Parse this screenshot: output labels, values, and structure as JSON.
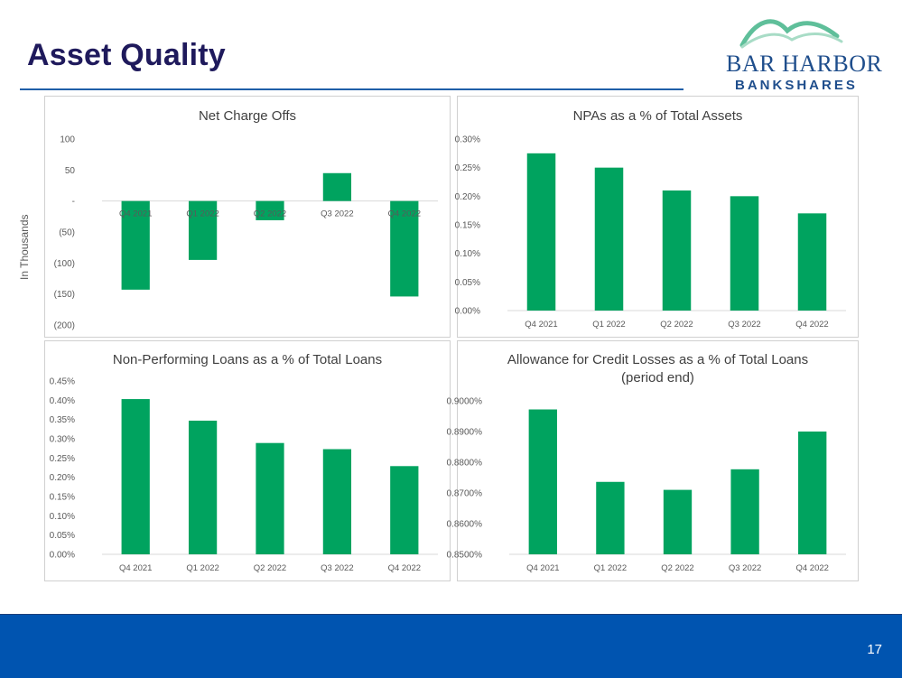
{
  "slide": {
    "title": "Asset Quality",
    "page_number": "17",
    "logo": {
      "line1": "BAR HARBOR",
      "line2": "BANKSHARES",
      "wave_color": "#5fbf9a"
    },
    "outer_ylabel": "In Thousands"
  },
  "colors": {
    "bar": "#00a35f",
    "axis": "#d9d9d9",
    "text": "#595959",
    "title_text": "#404040"
  },
  "chart_data": [
    {
      "type": "bar",
      "title": "Net Charge Offs",
      "categories": [
        "Q4 2021",
        "Q1 2022",
        "Q2 2022",
        "Q3 2022",
        "Q4 2022"
      ],
      "values": [
        -143,
        -95,
        -31,
        45,
        -154
      ],
      "ylim": [
        -200,
        100
      ],
      "yticks": [
        100,
        50,
        0,
        -50,
        -100,
        -150,
        -200
      ],
      "ytick_labels": [
        "100",
        "50",
        "-",
        "(50)",
        "(100)",
        "(150)",
        "(200)"
      ],
      "ylabel": "In Thousands",
      "xlabel": ""
    },
    {
      "type": "bar",
      "title": "NPAs as a % of Total Assets",
      "categories": [
        "Q4 2021",
        "Q1 2022",
        "Q2 2022",
        "Q3 2022",
        "Q4 2022"
      ],
      "values": [
        0.275,
        0.25,
        0.21,
        0.2,
        0.17
      ],
      "ylim": [
        0,
        0.3
      ],
      "yticks": [
        0.3,
        0.25,
        0.2,
        0.15,
        0.1,
        0.05,
        0
      ],
      "ytick_labels": [
        "0.30%",
        "0.25%",
        "0.20%",
        "0.15%",
        "0.10%",
        "0.05%",
        "0.00%"
      ],
      "ylabel": "",
      "xlabel": ""
    },
    {
      "type": "bar",
      "title": "Non-Performing Loans as a % of Total Loans",
      "categories": [
        "Q4 2021",
        "Q1 2022",
        "Q2 2022",
        "Q3 2022",
        "Q4 2022"
      ],
      "values": [
        0.403,
        0.347,
        0.289,
        0.273,
        0.229
      ],
      "ylim": [
        0,
        0.45
      ],
      "yticks": [
        0.45,
        0.4,
        0.35,
        0.3,
        0.25,
        0.2,
        0.15,
        0.1,
        0.05,
        0
      ],
      "ytick_labels": [
        "0.45%",
        "0.40%",
        "0.35%",
        "0.30%",
        "0.25%",
        "0.20%",
        "0.15%",
        "0.10%",
        "0.05%",
        "0.00%"
      ],
      "ylabel": "",
      "xlabel": ""
    },
    {
      "type": "bar",
      "title": "Allowance for Credit Losses as a % of Total Loans",
      "subtitle": "(period end)",
      "categories": [
        "Q4 2021",
        "Q1 2022",
        "Q2 2022",
        "Q3 2022",
        "Q4 2022"
      ],
      "values": [
        0.8972,
        0.8736,
        0.871,
        0.8777,
        0.89
      ],
      "ylim": [
        0.85,
        0.9
      ],
      "yticks": [
        0.9,
        0.89,
        0.88,
        0.87,
        0.86,
        0.85
      ],
      "ytick_labels": [
        "0.9000%",
        "0.8900%",
        "0.8800%",
        "0.8700%",
        "0.8600%",
        "0.8500%"
      ],
      "ylabel": "",
      "xlabel": ""
    }
  ]
}
